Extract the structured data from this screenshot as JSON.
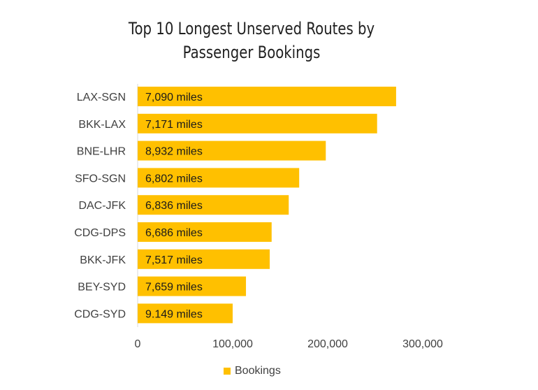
{
  "chart_data": {
    "type": "bar",
    "orientation": "horizontal",
    "title": "Top 10 Longest Unserved Routes by Passenger Bookings",
    "title_lines": [
      "Top 10 Longest Unserved Routes by",
      "Passenger Bookings"
    ],
    "categories": [
      "LAX-SGN",
      "BKK-LAX",
      "BNE-LHR",
      "SFO-SGN",
      "DAC-JFK",
      "CDG-DPS",
      "BKK-JFK",
      "BEY-SYD",
      "CDG-SYD"
    ],
    "series": [
      {
        "name": "Bookings",
        "values": [
          272000,
          252000,
          198000,
          170000,
          159000,
          141000,
          139000,
          114000,
          100000
        ],
        "data_labels": [
          "7,090 miles",
          "7,171 miles",
          "8,932 miles",
          "6,802 miles",
          "6,836 miles",
          "6,686 miles",
          "7,517 miles",
          "7,659 miles",
          "9.149 miles"
        ],
        "color": "#FFC000"
      }
    ],
    "xlim": [
      0,
      300000
    ],
    "x_ticks": [
      0,
      100000,
      200000,
      300000
    ],
    "x_tick_labels": [
      "0",
      "100,000",
      "200,000",
      "300,000"
    ],
    "xlabel": "",
    "ylabel": "",
    "grid": false,
    "legend_position": "bottom"
  }
}
